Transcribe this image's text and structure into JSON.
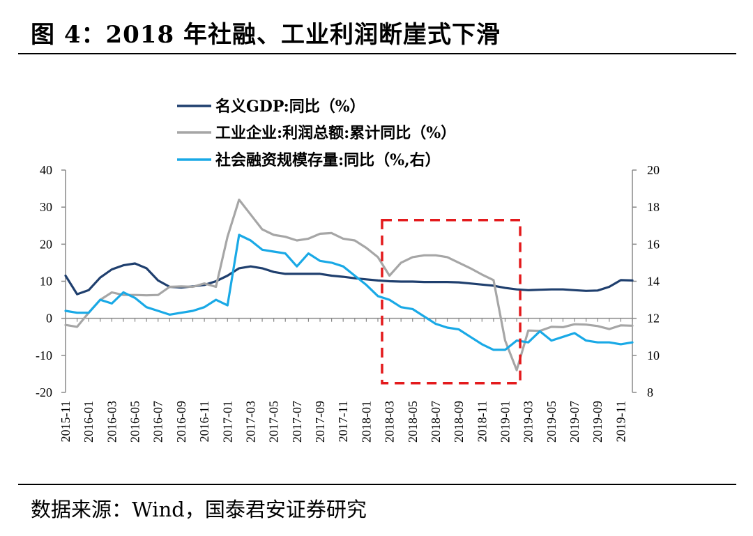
{
  "header": {
    "title": "图 4：2018 年社融、工业利润断崖式下滑"
  },
  "footer": {
    "source": "数据来源：Wind，国泰君安证券研究"
  },
  "chart_data": {
    "type": "line",
    "x": [
      "2015-11",
      "2015-12",
      "2016-01",
      "2016-02",
      "2016-03",
      "2016-04",
      "2016-05",
      "2016-06",
      "2016-07",
      "2016-08",
      "2016-09",
      "2016-10",
      "2016-11",
      "2016-12",
      "2017-01",
      "2017-02",
      "2017-03",
      "2017-04",
      "2017-05",
      "2017-06",
      "2017-07",
      "2017-08",
      "2017-09",
      "2017-10",
      "2017-11",
      "2017-12",
      "2018-01",
      "2018-02",
      "2018-03",
      "2018-04",
      "2018-05",
      "2018-06",
      "2018-07",
      "2018-08",
      "2018-09",
      "2018-10",
      "2018-11",
      "2018-12",
      "2019-01",
      "2019-02",
      "2019-03",
      "2019-04",
      "2019-05",
      "2019-06",
      "2019-07",
      "2019-08",
      "2019-09",
      "2019-10",
      "2019-11",
      "2019-12"
    ],
    "xticklabels": [
      "2015-11",
      "2016-01",
      "2016-03",
      "2016-05",
      "2016-07",
      "2016-09",
      "2016-11",
      "2017-01",
      "2017-03",
      "2017-05",
      "2017-07",
      "2017-09",
      "2017-11",
      "2018-01",
      "2018-03",
      "2018-05",
      "2018-07",
      "2018-09",
      "2018-11",
      "2019-01",
      "2019-03",
      "2019-05",
      "2019-07",
      "2019-09",
      "2019-11"
    ],
    "ylim_left": [
      -20,
      40
    ],
    "yticks_left": [
      "40",
      "30",
      "20",
      "10",
      "0",
      "-10",
      "-20"
    ],
    "ylim_right": [
      8,
      20
    ],
    "yticks_right": [
      "20",
      "18",
      "16",
      "14",
      "12",
      "10",
      "8"
    ],
    "legend_position": "top-center",
    "grid": false,
    "highlight_box": {
      "x_from": "2018-02",
      "x_to": "2019-02",
      "y_from": -17.5,
      "y_to": 26.5,
      "color": "#e31a1c",
      "style": "dashed"
    },
    "series": [
      {
        "name": "名义GDP:同比（%）",
        "axis": "left",
        "color": "#1f3f6e",
        "values": [
          11.5,
          6.5,
          7.6,
          11.0,
          13.2,
          14.3,
          14.8,
          13.5,
          10.2,
          8.5,
          8.3,
          8.6,
          9.0,
          10.0,
          11.5,
          13.5,
          14.0,
          13.5,
          12.5,
          12.0,
          12.0,
          12.0,
          12.0,
          11.5,
          11.2,
          10.8,
          10.5,
          10.2,
          10.0,
          9.9,
          9.9,
          9.8,
          9.8,
          9.8,
          9.7,
          9.4,
          9.1,
          8.8,
          8.2,
          7.8,
          7.6,
          7.7,
          7.8,
          7.8,
          7.6,
          7.4,
          7.5,
          8.5,
          10.3,
          10.2
        ]
      },
      {
        "name": "工业企业:利润总额:累计同比（%）",
        "axis": "left",
        "color": "#a6a6a6",
        "values": [
          -1.8,
          -2.3,
          1.5,
          5.0,
          7.0,
          6.3,
          6.3,
          6.2,
          6.3,
          8.5,
          8.6,
          8.5,
          9.4,
          8.5,
          22.0,
          32.0,
          28.0,
          24.0,
          22.5,
          22.0,
          21.0,
          21.5,
          22.8,
          23.0,
          21.5,
          21.0,
          19.0,
          16.5,
          11.5,
          15.0,
          16.5,
          17.0,
          17.0,
          16.5,
          15.0,
          13.5,
          11.8,
          10.3,
          -6.0,
          -14.0,
          -3.3,
          -3.4,
          -2.3,
          -2.4,
          -1.6,
          -1.7,
          -2.1,
          -2.9,
          -1.9,
          -2.0
        ]
      },
      {
        "name": "社会融资规模存量:同比（%,右）",
        "axis": "right",
        "color": "#19a9e6",
        "values": [
          12.4,
          12.3,
          12.3,
          13.0,
          12.8,
          13.4,
          13.1,
          12.6,
          12.4,
          12.2,
          12.3,
          12.4,
          12.6,
          13.0,
          12.7,
          16.5,
          16.2,
          15.7,
          15.6,
          15.5,
          14.8,
          15.5,
          15.1,
          15.0,
          14.8,
          14.3,
          13.8,
          13.2,
          13.0,
          12.6,
          12.5,
          12.1,
          11.7,
          11.5,
          11.4,
          11.0,
          10.6,
          10.3,
          10.3,
          10.8,
          10.7,
          11.3,
          10.8,
          11.0,
          11.2,
          10.8,
          10.7,
          10.7,
          10.6,
          10.7
        ]
      }
    ]
  }
}
